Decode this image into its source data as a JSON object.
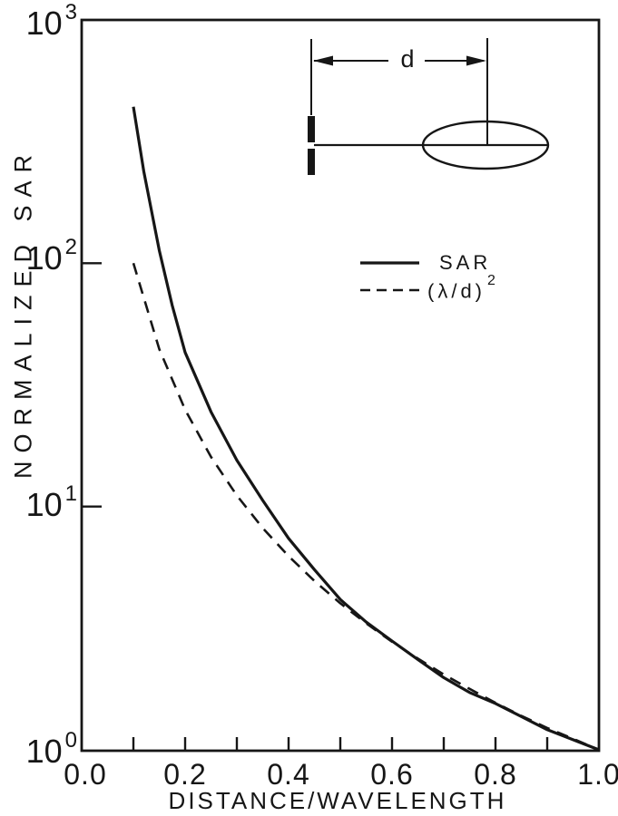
{
  "colors": {
    "ink": "#161616",
    "background": "#ffffff"
  },
  "chart_data": {
    "type": "line",
    "title": "",
    "xlabel": "DISTANCE/WAVELENGTH",
    "ylabel": "NORMALIZED SAR",
    "x_scale": "linear",
    "y_scale": "log",
    "xlim": [
      0.0,
      1.0
    ],
    "ylim": [
      1,
      1000
    ],
    "grid": false,
    "x_major_ticks": [
      {
        "value": 0.0,
        "label": "0.0"
      },
      {
        "value": 0.2,
        "label": "0.2"
      },
      {
        "value": 0.4,
        "label": "0.4"
      },
      {
        "value": 0.6,
        "label": "0.6"
      },
      {
        "value": 0.8,
        "label": "0.8"
      },
      {
        "value": 1.0,
        "label": "1.0"
      }
    ],
    "x_minor_tick_values": [
      0.1,
      0.3,
      0.5,
      0.7,
      0.9
    ],
    "y_ticks": [
      {
        "value": 1000,
        "base": "10",
        "exp": "3"
      },
      {
        "value": 100,
        "base": "10",
        "exp": "2"
      },
      {
        "value": 10,
        "base": "10",
        "exp": "1"
      },
      {
        "value": 1,
        "base": "10",
        "exp": "0"
      }
    ],
    "legend": {
      "position": "upper-right-inside",
      "entries": [
        {
          "label": "SAR",
          "sup": "",
          "line_style": "solid"
        },
        {
          "label": "(λ/d)",
          "sup": "2",
          "line_style": "dashed"
        }
      ]
    },
    "series": [
      {
        "name": "SAR",
        "line_style": "solid",
        "points": [
          [
            0.1,
            440
          ],
          [
            0.12,
            239
          ],
          [
            0.15,
            113
          ],
          [
            0.175,
            67
          ],
          [
            0.2,
            43
          ],
          [
            0.25,
            24.5
          ],
          [
            0.3,
            15.5
          ],
          [
            0.35,
            10.6
          ],
          [
            0.4,
            7.4
          ],
          [
            0.45,
            5.5
          ],
          [
            0.5,
            4.15
          ],
          [
            0.55,
            3.35
          ],
          [
            0.6,
            2.8
          ],
          [
            0.65,
            2.35
          ],
          [
            0.7,
            1.98
          ],
          [
            0.75,
            1.72
          ],
          [
            0.8,
            1.55
          ],
          [
            0.85,
            1.37
          ],
          [
            0.9,
            1.21
          ],
          [
            0.95,
            1.1
          ],
          [
            1.0,
            1.0
          ]
        ]
      },
      {
        "name": "(λ/d)²",
        "line_style": "dashed",
        "points": [
          [
            0.1,
            100
          ],
          [
            0.15,
            44.4
          ],
          [
            0.2,
            25
          ],
          [
            0.25,
            16
          ],
          [
            0.3,
            11.1
          ],
          [
            0.35,
            8.16
          ],
          [
            0.4,
            6.25
          ],
          [
            0.45,
            4.94
          ],
          [
            0.5,
            4.0
          ],
          [
            0.55,
            3.31
          ],
          [
            0.6,
            2.78
          ],
          [
            0.65,
            2.37
          ],
          [
            0.7,
            2.04
          ],
          [
            0.75,
            1.78
          ],
          [
            0.8,
            1.56
          ],
          [
            0.85,
            1.38
          ],
          [
            0.9,
            1.23
          ],
          [
            0.95,
            1.11
          ],
          [
            1.0,
            1.0
          ]
        ]
      }
    ]
  },
  "inset": {
    "dimension_label": "d"
  }
}
